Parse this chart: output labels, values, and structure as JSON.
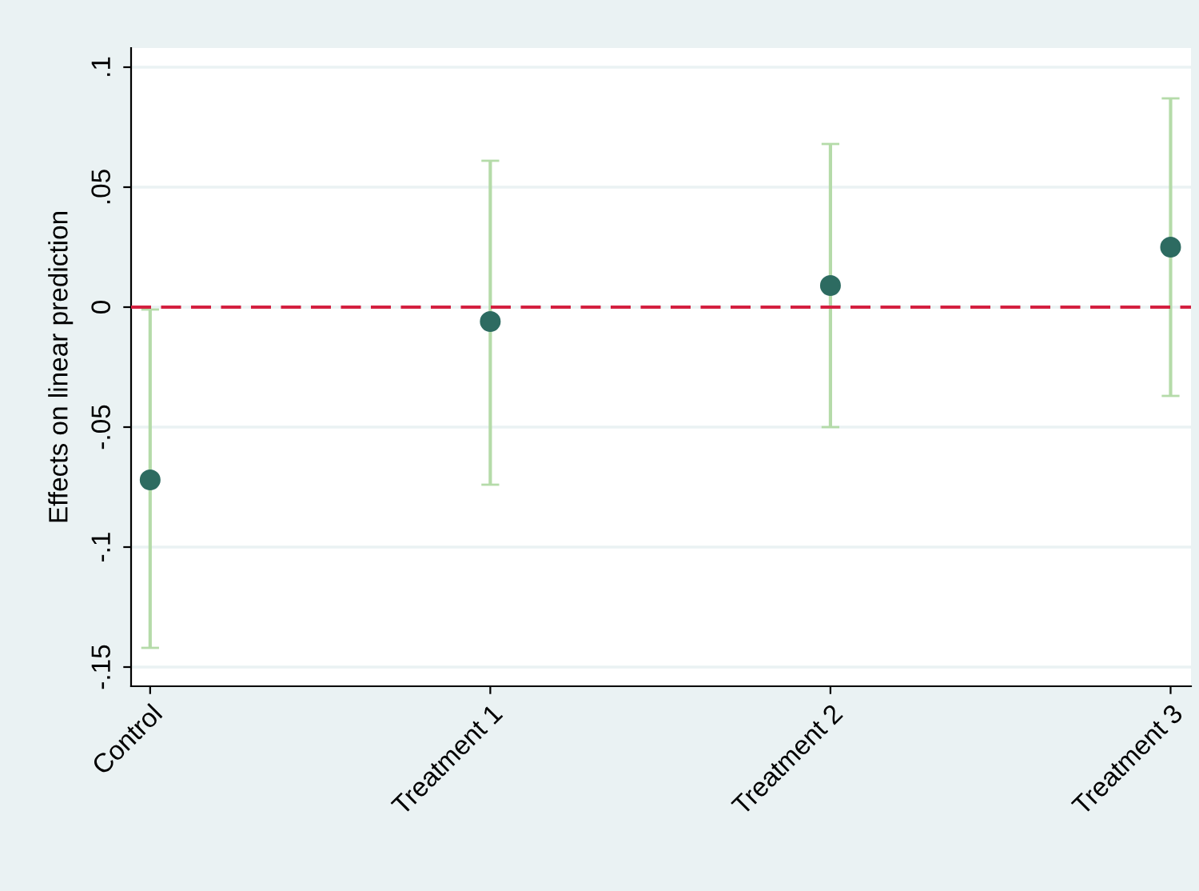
{
  "chart_data": {
    "type": "scatter",
    "ylabel": "Effects on linear prediction",
    "categories": [
      "Control",
      "Treatment 1",
      "Treatment 2",
      "Treatment 3"
    ],
    "series": [
      {
        "color": "#2d6b61",
        "values": [
          -0.072,
          -0.006,
          0.009,
          0.025
        ],
        "errors": [
          [
            -0.142,
            -0.001
          ],
          [
            -0.074,
            0.061
          ],
          [
            -0.05,
            0.068
          ],
          [
            -0.037,
            0.087
          ]
        ]
      }
    ],
    "ylim": [
      -0.158,
      0.108
    ],
    "yticks": [
      {
        "value": -0.15,
        "label": "-.15"
      },
      {
        "value": -0.1,
        "label": "-.1"
      },
      {
        "value": -0.05,
        "label": "-.05"
      },
      0,
      {
        "value": 0.05,
        "label": ".05"
      },
      {
        "value": 0.1,
        "label": ".1"
      }
    ],
    "ref_lines": [
      {
        "axis": "y",
        "value": 0,
        "color": "#d42040",
        "line_style": "dashed"
      }
    ],
    "grid": "y",
    "marker": "circle",
    "legend": false
  }
}
